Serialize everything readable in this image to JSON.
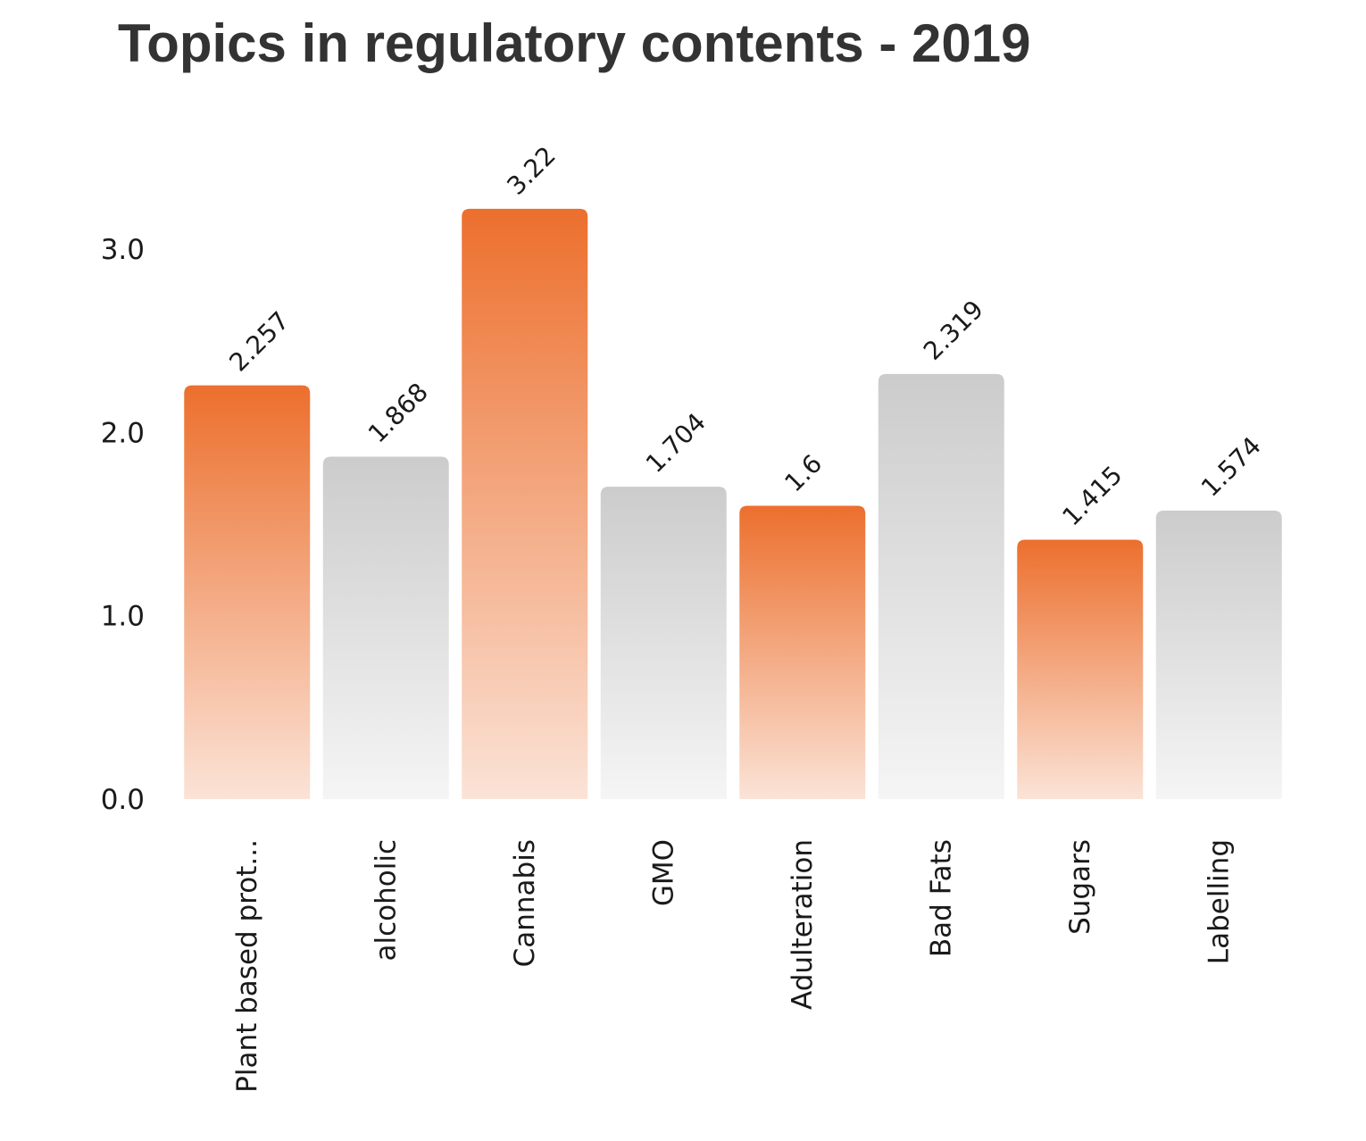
{
  "chart_data": {
    "type": "bar",
    "title": "Topics in regulatory contents - 2019",
    "xlabel": "",
    "ylabel": "",
    "ylim": [
      0,
      3.2
    ],
    "yticks": [
      "0.0",
      "1.0",
      "2.0",
      "3.0"
    ],
    "ytick_values": [
      0,
      1,
      2,
      3
    ],
    "grid": false,
    "legend": "none",
    "categories": [
      "Plant based prot...",
      "alcoholic",
      "Cannabis",
      "GMO",
      "Adulteration",
      "Bad Fats",
      "Sugars",
      "Labelling"
    ],
    "values": [
      2.257,
      1.868,
      3.22,
      1.704,
      1.6,
      2.319,
      1.415,
      1.574
    ],
    "value_labels": [
      "2.257",
      "1.868",
      "3.22",
      "1.704",
      "1.6",
      "2.319",
      "1.415",
      "1.574"
    ],
    "bar_styles": [
      "orange",
      "gray",
      "orange",
      "gray",
      "orange",
      "gray",
      "orange",
      "gray"
    ],
    "colors": {
      "orange_top": "#ec6f2d",
      "orange_bottom": "#fbe3d7",
      "gray_top": "#cccccc",
      "gray_bottom": "#f5f5f5",
      "text": "#1a1a1a",
      "title": "#333333"
    }
  }
}
